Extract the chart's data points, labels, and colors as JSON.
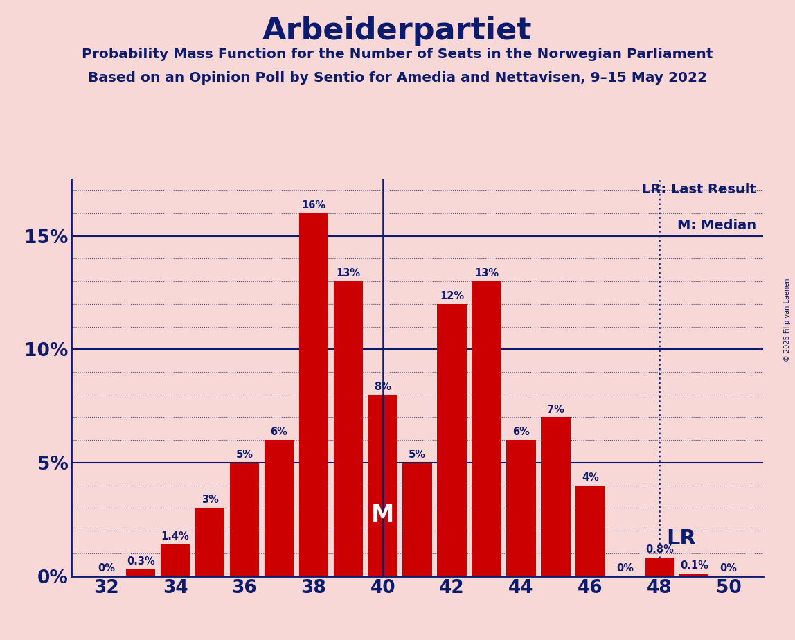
{
  "title": "Arbeiderpartiet",
  "subtitle1": "Probability Mass Function for the Number of Seats in the Norwegian Parliament",
  "subtitle2": "Based on an Opinion Poll by Sentio for Amedia and Nettavisen, 9–15 May 2022",
  "copyright": "© 2025 Filip van Laenen",
  "seats": [
    32,
    33,
    34,
    35,
    36,
    37,
    38,
    39,
    40,
    41,
    42,
    43,
    44,
    45,
    46,
    47,
    48,
    49,
    50
  ],
  "probabilities": [
    0.0,
    0.3,
    1.4,
    3.0,
    5.0,
    6.0,
    16.0,
    13.0,
    8.0,
    5.0,
    12.0,
    13.0,
    6.0,
    7.0,
    4.0,
    0.0,
    0.8,
    0.1,
    0.0
  ],
  "bar_color": "#cc0000",
  "background_color": "#f8d7d7",
  "title_color": "#0d1b6e",
  "axis_color": "#0d1b6e",
  "grid_color": "#0d1b6e",
  "label_color": "#0d1b6e",
  "median_seat": 40,
  "lr_seat": 48,
  "yticks": [
    0,
    5,
    10,
    15
  ],
  "ylim": [
    0,
    17.5
  ],
  "xlim": [
    31.0,
    51.0
  ],
  "ylabel_pct": [
    "0%",
    "5%",
    "10%",
    "15%"
  ],
  "legend_lr": "LR: Last Result",
  "legend_m": "M: Median",
  "bar_width": 0.85,
  "grid_major_linestyle": "-",
  "grid_minor_linestyle": ":",
  "grid_alpha": 0.7,
  "grid_linewidth": 1.2,
  "minor_yticks": [
    1,
    2,
    3,
    4,
    6,
    7,
    8,
    9,
    11,
    12,
    13,
    14,
    16,
    17
  ]
}
